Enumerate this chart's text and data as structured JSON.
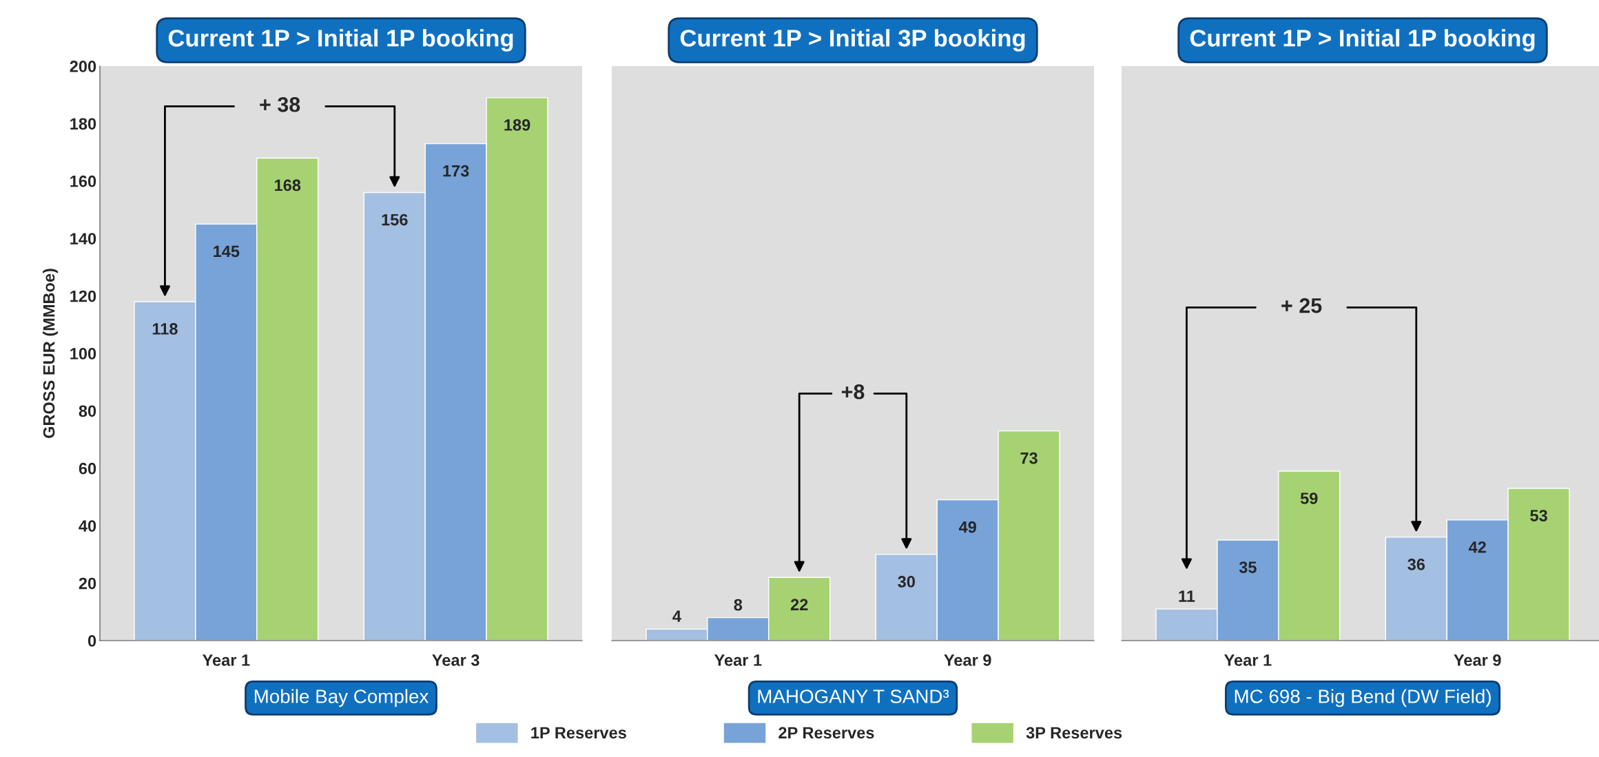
{
  "chart_data": [
    {
      "type": "bar",
      "title": "Current 1P > Initial 1P booking",
      "xlabel": "Mobile Bay Complex",
      "ylabel": "GROSS EUR (MMBoe)",
      "categories": [
        "Year 1",
        "Year 3"
      ],
      "ylim": [
        0,
        200
      ],
      "yticks": [
        0,
        20,
        40,
        60,
        80,
        100,
        120,
        140,
        160,
        180,
        200
      ],
      "data_labels": true,
      "grid": false,
      "legend": "bottom",
      "annotations": [
        "+ 38"
      ],
      "series": [
        {
          "name": "1P Reserves",
          "color": "#a3bfe2",
          "values": [
            118,
            156
          ]
        },
        {
          "name": "2P Reserves",
          "color": "#77a3d8",
          "values": [
            145,
            173
          ]
        },
        {
          "name": "3P Reserves",
          "color": "#a6d272",
          "values": [
            168,
            189
          ]
        }
      ]
    },
    {
      "type": "bar",
      "title": "Current 1P > Initial 3P booking",
      "xlabel": "MAHOGANY T SAND³",
      "categories": [
        "Year 1",
        "Year 9"
      ],
      "ylim": [
        0,
        200
      ],
      "tick_labels": "x",
      "data_labels": true,
      "grid": false,
      "annotations": [
        "+8"
      ],
      "series": [
        {
          "color": "#a3bfe2",
          "values": [
            4,
            30
          ]
        },
        {
          "color": "#77a3d8",
          "values": [
            8,
            49
          ]
        },
        {
          "color": "#a6d272",
          "values": [
            22,
            73
          ]
        }
      ]
    },
    {
      "type": "bar",
      "title": "Current 1P > Initial 1P booking",
      "xlabel": "MC 698 - Big Bend (DW Field)",
      "categories": [
        "Year 1",
        "Year 9"
      ],
      "ylim": [
        0,
        200
      ],
      "tick_labels": "x",
      "data_labels": true,
      "grid": false,
      "annotations": [
        "+ 25"
      ],
      "series": [
        {
          "color": "#a3bfe2",
          "values": [
            11,
            36
          ]
        },
        {
          "color": "#77a3d8",
          "values": [
            35,
            42
          ]
        },
        {
          "color": "#a6d272",
          "values": [
            59,
            53
          ]
        }
      ]
    }
  ]
}
